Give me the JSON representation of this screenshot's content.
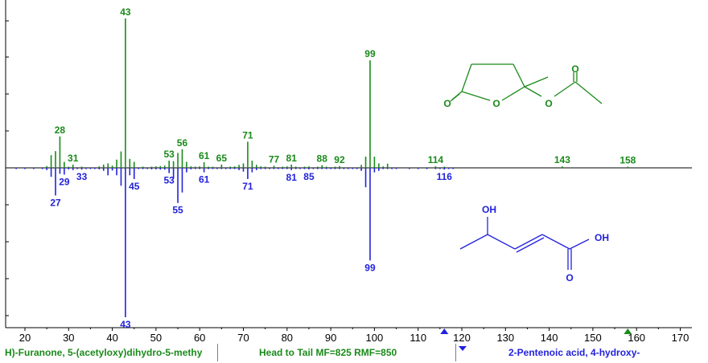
{
  "chart_data": {
    "type": "bar",
    "xlabel": "",
    "ylabel": "",
    "xlim": [
      15,
      172
    ],
    "ylim": [
      -1000,
      1000
    ],
    "x_ticks": [
      20,
      30,
      40,
      50,
      60,
      70,
      80,
      90,
      100,
      110,
      120,
      130,
      140,
      150,
      160,
      170
    ],
    "grid": false,
    "colors": {
      "top": "#1a8a1a",
      "bottom": "#2222dd"
    },
    "series": [
      {
        "color": "#1a8a1a",
        "peaks": [
          {
            "mz": 25,
            "i": 12
          },
          {
            "mz": 26,
            "i": 85
          },
          {
            "mz": 27,
            "i": 112
          },
          {
            "mz": 28,
            "i": 210
          },
          {
            "mz": 29,
            "i": 40
          },
          {
            "mz": 30,
            "i": 8
          },
          {
            "mz": 31,
            "i": 22
          },
          {
            "mz": 33,
            "i": 6
          },
          {
            "mz": 37,
            "i": 10
          },
          {
            "mz": 38,
            "i": 22
          },
          {
            "mz": 39,
            "i": 30
          },
          {
            "mz": 40,
            "i": 15
          },
          {
            "mz": 41,
            "i": 55
          },
          {
            "mz": 42,
            "i": 110
          },
          {
            "mz": 43,
            "i": 1000
          },
          {
            "mz": 44,
            "i": 60
          },
          {
            "mz": 45,
            "i": 40
          },
          {
            "mz": 47,
            "i": 6
          },
          {
            "mz": 49,
            "i": 8
          },
          {
            "mz": 50,
            "i": 10
          },
          {
            "mz": 51,
            "i": 12
          },
          {
            "mz": 52,
            "i": 15
          },
          {
            "mz": 53,
            "i": 48
          },
          {
            "mz": 54,
            "i": 45
          },
          {
            "mz": 55,
            "i": 100
          },
          {
            "mz": 56,
            "i": 125
          },
          {
            "mz": 57,
            "i": 40
          },
          {
            "mz": 58,
            "i": 10
          },
          {
            "mz": 59,
            "i": 8
          },
          {
            "mz": 60,
            "i": 10
          },
          {
            "mz": 61,
            "i": 38
          },
          {
            "mz": 62,
            "i": 8
          },
          {
            "mz": 63,
            "i": 6
          },
          {
            "mz": 65,
            "i": 22
          },
          {
            "mz": 67,
            "i": 8
          },
          {
            "mz": 68,
            "i": 10
          },
          {
            "mz": 69,
            "i": 20
          },
          {
            "mz": 70,
            "i": 30
          },
          {
            "mz": 71,
            "i": 175
          },
          {
            "mz": 72,
            "i": 48
          },
          {
            "mz": 73,
            "i": 20
          },
          {
            "mz": 74,
            "i": 10
          },
          {
            "mz": 75,
            "i": 6
          },
          {
            "mz": 77,
            "i": 14
          },
          {
            "mz": 79,
            "i": 8
          },
          {
            "mz": 80,
            "i": 10
          },
          {
            "mz": 81,
            "i": 22
          },
          {
            "mz": 82,
            "i": 8
          },
          {
            "mz": 84,
            "i": 8
          },
          {
            "mz": 85,
            "i": 10
          },
          {
            "mz": 87,
            "i": 6
          },
          {
            "mz": 88,
            "i": 18
          },
          {
            "mz": 89,
            "i": 6
          },
          {
            "mz": 91,
            "i": 6
          },
          {
            "mz": 92,
            "i": 12
          },
          {
            "mz": 97,
            "i": 20
          },
          {
            "mz": 98,
            "i": 75
          },
          {
            "mz": 99,
            "i": 720
          },
          {
            "mz": 100,
            "i": 75
          },
          {
            "mz": 101,
            "i": 30
          },
          {
            "mz": 102,
            "i": 10
          },
          {
            "mz": 103,
            "i": 28
          },
          {
            "mz": 114,
            "i": 10
          },
          {
            "mz": 116,
            "i": 6
          },
          {
            "mz": 143,
            "i": 10
          },
          {
            "mz": 158,
            "i": 6
          }
        ],
        "labels": [
          {
            "mz": 43,
            "text": "43"
          },
          {
            "mz": 99,
            "text": "99"
          },
          {
            "mz": 28,
            "text": "28"
          },
          {
            "mz": 71,
            "text": "71"
          },
          {
            "mz": 56,
            "text": "56"
          },
          {
            "mz": 53,
            "text": "53"
          },
          {
            "mz": 61,
            "text": "61"
          },
          {
            "mz": 31,
            "text": "31"
          },
          {
            "mz": 65,
            "text": "65"
          },
          {
            "mz": 77,
            "text": "77"
          },
          {
            "mz": 81,
            "text": "81"
          },
          {
            "mz": 88,
            "text": "88"
          },
          {
            "mz": 92,
            "text": "92"
          },
          {
            "mz": 114,
            "text": "114"
          },
          {
            "mz": 143,
            "text": "143"
          },
          {
            "mz": 158,
            "text": "158"
          }
        ]
      },
      {
        "color": "#2222dd",
        "peaks": [
          {
            "mz": 18,
            "i": 6
          },
          {
            "mz": 20,
            "i": 6
          },
          {
            "mz": 22,
            "i": 6
          },
          {
            "mz": 24,
            "i": 6
          },
          {
            "mz": 25,
            "i": 15
          },
          {
            "mz": 26,
            "i": 60
          },
          {
            "mz": 27,
            "i": 185
          },
          {
            "mz": 28,
            "i": 40
          },
          {
            "mz": 29,
            "i": 45
          },
          {
            "mz": 30,
            "i": 10
          },
          {
            "mz": 31,
            "i": 15
          },
          {
            "mz": 32,
            "i": 6
          },
          {
            "mz": 33,
            "i": 12
          },
          {
            "mz": 34,
            "i": 6
          },
          {
            "mz": 35,
            "i": 6
          },
          {
            "mz": 36,
            "i": 6
          },
          {
            "mz": 37,
            "i": 10
          },
          {
            "mz": 38,
            "i": 20
          },
          {
            "mz": 39,
            "i": 50
          },
          {
            "mz": 40,
            "i": 18
          },
          {
            "mz": 41,
            "i": 50
          },
          {
            "mz": 42,
            "i": 120
          },
          {
            "mz": 43,
            "i": 1000
          },
          {
            "mz": 44,
            "i": 50
          },
          {
            "mz": 45,
            "i": 75
          },
          {
            "mz": 46,
            "i": 8
          },
          {
            "mz": 47,
            "i": 8
          },
          {
            "mz": 48,
            "i": 8
          },
          {
            "mz": 49,
            "i": 10
          },
          {
            "mz": 50,
            "i": 10
          },
          {
            "mz": 51,
            "i": 12
          },
          {
            "mz": 52,
            "i": 12
          },
          {
            "mz": 53,
            "i": 35
          },
          {
            "mz": 54,
            "i": 70
          },
          {
            "mz": 55,
            "i": 235
          },
          {
            "mz": 56,
            "i": 165
          },
          {
            "mz": 57,
            "i": 30
          },
          {
            "mz": 58,
            "i": 10
          },
          {
            "mz": 59,
            "i": 8
          },
          {
            "mz": 60,
            "i": 8
          },
          {
            "mz": 61,
            "i": 30
          },
          {
            "mz": 62,
            "i": 8
          },
          {
            "mz": 63,
            "i": 6
          },
          {
            "mz": 64,
            "i": 6
          },
          {
            "mz": 65,
            "i": 8
          },
          {
            "mz": 66,
            "i": 6
          },
          {
            "mz": 67,
            "i": 8
          },
          {
            "mz": 68,
            "i": 8
          },
          {
            "mz": 69,
            "i": 15
          },
          {
            "mz": 70,
            "i": 25
          },
          {
            "mz": 71,
            "i": 75
          },
          {
            "mz": 72,
            "i": 30
          },
          {
            "mz": 73,
            "i": 15
          },
          {
            "mz": 74,
            "i": 8
          },
          {
            "mz": 75,
            "i": 6
          },
          {
            "mz": 76,
            "i": 6
          },
          {
            "mz": 77,
            "i": 8
          },
          {
            "mz": 78,
            "i": 6
          },
          {
            "mz": 79,
            "i": 8
          },
          {
            "mz": 80,
            "i": 8
          },
          {
            "mz": 81,
            "i": 15
          },
          {
            "mz": 82,
            "i": 8
          },
          {
            "mz": 83,
            "i": 8
          },
          {
            "mz": 84,
            "i": 8
          },
          {
            "mz": 85,
            "i": 10
          },
          {
            "mz": 86,
            "i": 6
          },
          {
            "mz": 87,
            "i": 6
          },
          {
            "mz": 88,
            "i": 6
          },
          {
            "mz": 89,
            "i": 6
          },
          {
            "mz": 90,
            "i": 6
          },
          {
            "mz": 91,
            "i": 6
          },
          {
            "mz": 92,
            "i": 6
          },
          {
            "mz": 93,
            "i": 6
          },
          {
            "mz": 94,
            "i": 6
          },
          {
            "mz": 95,
            "i": 6
          },
          {
            "mz": 96,
            "i": 6
          },
          {
            "mz": 97,
            "i": 20
          },
          {
            "mz": 98,
            "i": 130
          },
          {
            "mz": 99,
            "i": 620
          },
          {
            "mz": 100,
            "i": 30
          },
          {
            "mz": 101,
            "i": 20
          },
          {
            "mz": 102,
            "i": 6
          },
          {
            "mz": 103,
            "i": 6
          },
          {
            "mz": 104,
            "i": 6
          },
          {
            "mz": 105,
            "i": 6
          },
          {
            "mz": 108,
            "i": 6
          },
          {
            "mz": 110,
            "i": 6
          },
          {
            "mz": 112,
            "i": 6
          },
          {
            "mz": 114,
            "i": 6
          },
          {
            "mz": 115,
            "i": 8
          },
          {
            "mz": 116,
            "i": 12
          },
          {
            "mz": 117,
            "i": 6
          },
          {
            "mz": 118,
            "i": 6
          }
        ],
        "labels": [
          {
            "mz": 43,
            "text": "43"
          },
          {
            "mz": 99,
            "text": "99"
          },
          {
            "mz": 55,
            "text": "55"
          },
          {
            "mz": 27,
            "text": "27"
          },
          {
            "mz": 29,
            "text": "29"
          },
          {
            "mz": 71,
            "text": "71"
          },
          {
            "mz": 45,
            "text": "45"
          },
          {
            "mz": 53,
            "text": "53"
          },
          {
            "mz": 61,
            "text": "61"
          },
          {
            "mz": 33,
            "text": "33"
          },
          {
            "mz": 81,
            "text": "81"
          },
          {
            "mz": 85,
            "text": "85"
          },
          {
            "mz": 116,
            "text": "116"
          }
        ]
      }
    ],
    "structures": {
      "top": {
        "color": "#1a8a1a",
        "atoms": [
          "O",
          "O",
          "O",
          "O"
        ]
      },
      "bottom": {
        "color": "#2222dd",
        "atoms": [
          "OH",
          "OH",
          "O"
        ]
      }
    },
    "markers": [
      {
        "mz": 116,
        "color": "#2222dd"
      },
      {
        "mz": 158,
        "color": "#1a8a1a"
      }
    ]
  },
  "status_bar": {
    "left": "H)-Furanone, 5-(acetyloxy)dihydro-5-methy",
    "middle": "Head to Tail MF=825 RMF=850",
    "right": "2-Pentenoic acid, 4-hydroxy-"
  }
}
